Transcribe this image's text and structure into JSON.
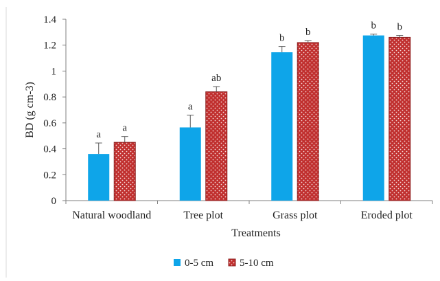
{
  "chart_data": {
    "type": "bar",
    "title": "",
    "xlabel": "Treatments",
    "ylabel": "BD (g cm-3)",
    "ylim": [
      0,
      1.4
    ],
    "yticks": [
      "0",
      "0.2",
      "0.4",
      "0.6",
      "0.8",
      "1",
      "1.2",
      "1.4"
    ],
    "grid": false,
    "legend_position": "bottom",
    "categories": [
      "Natural woodland",
      "Tree plot",
      "Grass plot",
      "Eroded plot"
    ],
    "series": [
      {
        "name": "0-5 cm",
        "color": "#0ea5e9",
        "pattern": "solid",
        "values": [
          0.36,
          0.565,
          1.145,
          1.275
        ],
        "errors": [
          0.085,
          0.095,
          0.045,
          0.01
        ],
        "labels": [
          "a",
          "a",
          "b",
          "b"
        ]
      },
      {
        "name": "5-10 cm",
        "color": "#c0302f",
        "pattern": "dotted",
        "values": [
          0.45,
          0.84,
          1.22,
          1.26
        ],
        "errors": [
          0.045,
          0.04,
          0.015,
          0.015
        ],
        "labels": [
          "a",
          "ab",
          "b",
          "b"
        ]
      }
    ]
  }
}
